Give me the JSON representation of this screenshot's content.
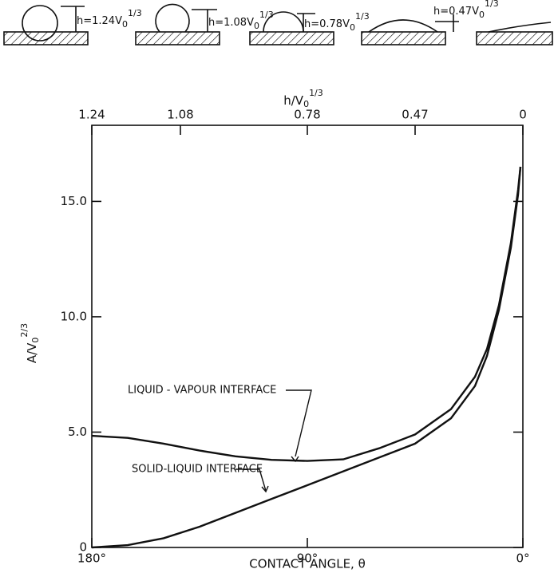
{
  "chart_data": {
    "type": "line",
    "drops": [
      {
        "text": "h=1.24V",
        "sub": "0",
        "sup": "1/3"
      },
      {
        "text": "h=1.08V",
        "sub": "0",
        "sup": "1/3"
      },
      {
        "text": "h=0.78V",
        "sub": "0",
        "sup": "1/3"
      },
      {
        "text": "h=0.47V",
        "sub": "0",
        "sup": "1/3"
      }
    ],
    "top_axis": {
      "text": "h/V",
      "sub": "0",
      "sup": "1/3",
      "ticks": [
        1.24,
        1.08,
        0.78,
        0.47,
        0
      ],
      "at_angle": [
        180,
        143,
        90,
        45,
        0
      ]
    },
    "xlabel": "CONTACT ANGLE, θ",
    "ylabel": {
      "text": "A/V",
      "sub": "0",
      "sup": "2/3"
    },
    "xlim": [
      180,
      0
    ],
    "ylim": [
      0,
      18.3
    ],
    "xticks": [
      {
        "value": 180,
        "label": "180°"
      },
      {
        "value": 90,
        "label": "90°"
      },
      {
        "value": 0,
        "label": "0°"
      }
    ],
    "yticks": [
      0,
      {
        "value": 5,
        "label": "5.0"
      },
      {
        "value": 10,
        "label": "10.0"
      },
      {
        "value": 15,
        "label": "15.0"
      }
    ],
    "x": [
      180,
      165,
      150,
      135,
      120,
      105,
      90,
      75,
      60,
      45,
      30,
      20,
      15,
      10,
      5,
      2,
      1
    ],
    "series": [
      {
        "name": "LIQUID - VAPOUR INTERFACE",
        "color": "#111111",
        "values": [
          4.84,
          4.75,
          4.5,
          4.2,
          3.95,
          3.8,
          3.75,
          3.82,
          4.3,
          4.9,
          6.0,
          7.4,
          8.6,
          10.5,
          13.2,
          15.5,
          16.5
        ]
      },
      {
        "name": "SOLID-LIQUID INTERFACE",
        "color": "#111111",
        "values": [
          0,
          0.1,
          0.4,
          0.9,
          1.5,
          2.1,
          2.7,
          3.3,
          3.9,
          4.5,
          5.6,
          7.0,
          8.3,
          10.3,
          13.0,
          15.3,
          16.5
        ]
      }
    ]
  }
}
